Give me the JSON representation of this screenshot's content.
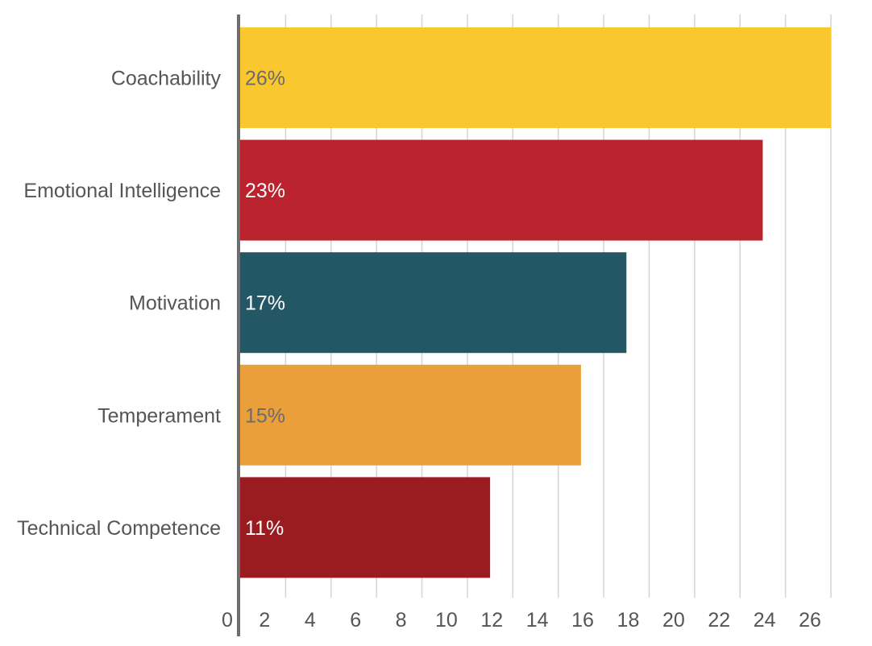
{
  "chart_data": {
    "type": "bar",
    "orientation": "horizontal",
    "title": "",
    "xlabel": "",
    "ylabel": "",
    "categories": [
      "Coachability",
      "Emotional Intelligence",
      "Motivation",
      "Temperament",
      "Technical Competence"
    ],
    "values": [
      26,
      23,
      17,
      15,
      11
    ],
    "value_labels": [
      "26%",
      "23%",
      "17%",
      "15%",
      "11%"
    ],
    "bar_colors": [
      "#FBC72F",
      "#BA222D",
      "#235765",
      "#EA9F3A",
      "#9A1B20"
    ],
    "value_label_colors": [
      "#6b6b6b",
      "#ffffff",
      "#ffffff",
      "#6b6b6b",
      "#ffffff"
    ],
    "xlim": [
      0,
      26
    ],
    "x_ticks": [
      "0",
      "2",
      "4",
      "6",
      "8",
      "10",
      "12",
      "14",
      "16",
      "18",
      "20",
      "22",
      "24",
      "26"
    ],
    "grid": "vertical",
    "legend": "none"
  }
}
